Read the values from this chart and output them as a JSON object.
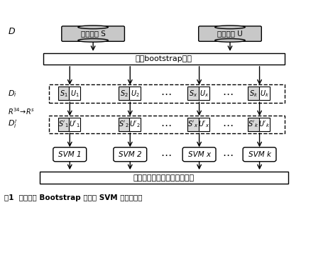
{
  "title": "图1  基于改进 Bootstrap 抽样的 SVM 组合分类器",
  "bg_color": "#ffffff",
  "gray_fill": "#c8c8c8",
  "light_gray": "#d8d8d8",
  "white_fill": "#ffffff",
  "dark_text": "#000000",
  "cylinder_left_label": "稳定样本 S",
  "cylinder_right_label": "失稳样本 U",
  "bootstrap_label": "改进bootstrap抽样",
  "bottom_box_label": "基于概率输出的预测结果集成",
  "svm_labels": [
    "SVM 1",
    "SVM 2",
    "SVM x",
    "SVM k"
  ],
  "fig_width": 4.62,
  "fig_height": 3.61
}
